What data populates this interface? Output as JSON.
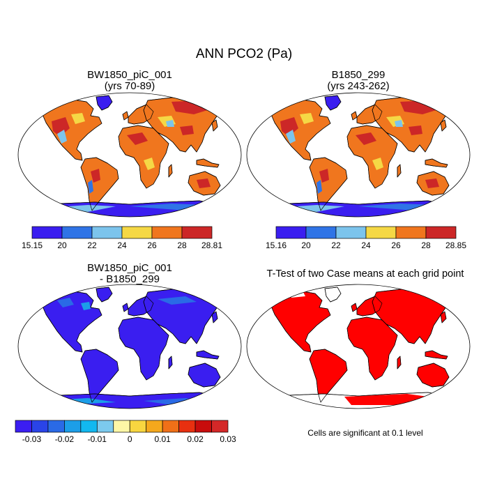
{
  "figure": {
    "title": "ANN PCO2 (Pa)"
  },
  "chart_data": [
    {
      "type": "map",
      "title": "BW1850_piC_001",
      "subtitle": "(yrs 70-89)",
      "colorbar": {
        "colors": [
          "#3a1ef0",
          "#2f74e6",
          "#7cc4ec",
          "#f5d845",
          "#f0761e",
          "#cc2727"
        ],
        "tick_labels": [
          "15.15",
          "20",
          "22",
          "24",
          "26",
          "28",
          "28.81"
        ]
      }
    },
    {
      "type": "map",
      "title": "B1850_299",
      "subtitle": "(yrs 243-262)",
      "colorbar": {
        "colors": [
          "#3a1ef0",
          "#2f74e6",
          "#7cc4ec",
          "#f5d845",
          "#f0761e",
          "#cc2727"
        ],
        "tick_labels": [
          "15.16",
          "20",
          "22",
          "24",
          "26",
          "28",
          "28.85"
        ]
      }
    },
    {
      "type": "map",
      "title": "BW1850_piC_001",
      "subtitle": "- B1850_299",
      "colorbar": {
        "colors": [
          "#3b1ef2",
          "#2a44e8",
          "#2a6ae6",
          "#1c9ee8",
          "#12b8f0",
          "#7ccaee",
          "#fdf7a6",
          "#f8d640",
          "#f5a81c",
          "#f07018",
          "#e83010",
          "#c80c0c",
          "#d42828"
        ],
        "tick_labels": [
          "-0.03",
          "-0.02",
          "-0.01",
          "0",
          "0.01",
          "0.02",
          "0.03"
        ],
        "tick_positions": [
          1,
          3,
          5,
          7,
          9,
          11,
          13
        ]
      }
    },
    {
      "type": "map",
      "title": "T-Test of two Case means at each grid point",
      "note": "Cells are significant at 0.1 level",
      "fill_color": "#ff0000"
    }
  ]
}
